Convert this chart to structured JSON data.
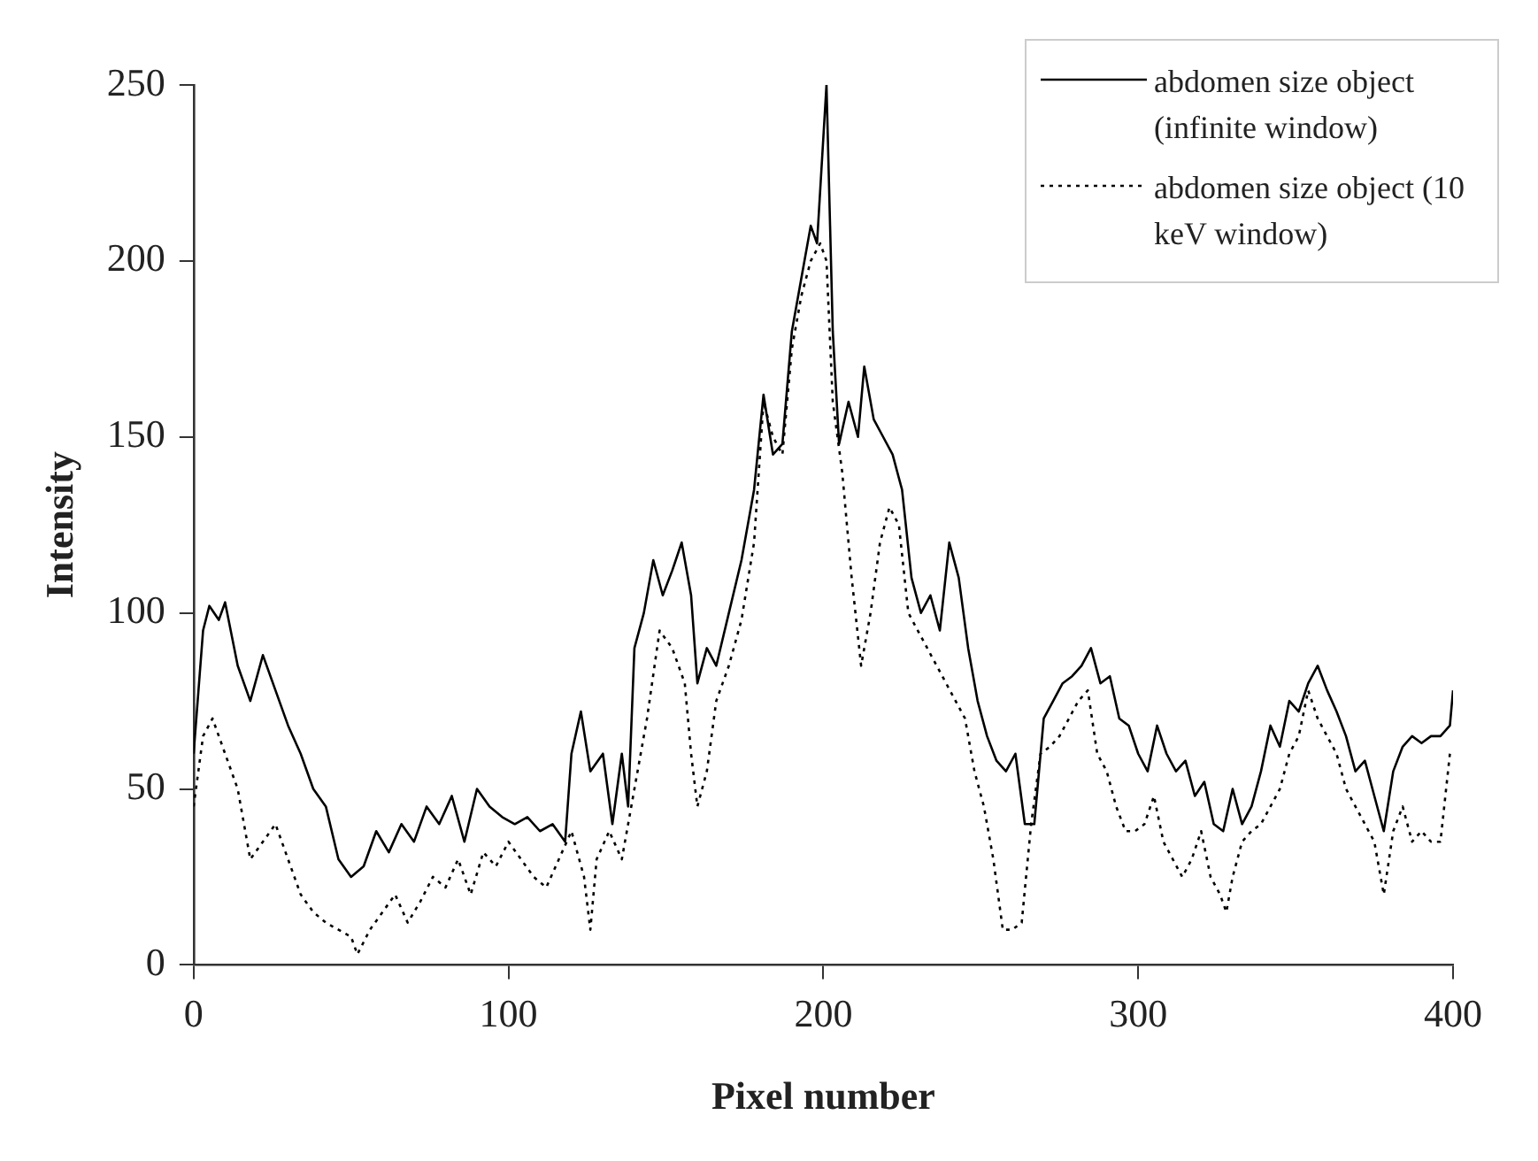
{
  "chart_data": {
    "type": "line",
    "xlabel": "Pixel number",
    "ylabel": "Intensity",
    "xlim": [
      0,
      400
    ],
    "ylim": [
      0,
      250
    ],
    "xticks": [
      0,
      100,
      200,
      300,
      400
    ],
    "yticks": [
      0,
      50,
      100,
      150,
      200,
      250
    ],
    "grid": false,
    "legend": "top right",
    "marker": "none",
    "series": [
      {
        "name": "abdomen size object (infinite window)",
        "color": "#000000",
        "line_style": "solid",
        "x": [
          0,
          3,
          5,
          8,
          10,
          14,
          18,
          22,
          26,
          30,
          34,
          38,
          42,
          46,
          50,
          54,
          58,
          62,
          66,
          70,
          74,
          78,
          82,
          86,
          90,
          94,
          98,
          102,
          106,
          110,
          114,
          118,
          120,
          123,
          126,
          130,
          133,
          136,
          138,
          140,
          143,
          146,
          149,
          152,
          155,
          158,
          160,
          163,
          166,
          170,
          174,
          178,
          181,
          184,
          187,
          190,
          193,
          196,
          198,
          201,
          203,
          205,
          208,
          211,
          213,
          216,
          219,
          222,
          225,
          228,
          231,
          234,
          237,
          240,
          243,
          246,
          249,
          252,
          255,
          258,
          261,
          264,
          267,
          270,
          273,
          276,
          279,
          282,
          285,
          288,
          291,
          294,
          297,
          300,
          303,
          306,
          309,
          312,
          315,
          318,
          321,
          324,
          327,
          330,
          333,
          336,
          339,
          342,
          345,
          348,
          351,
          354,
          357,
          360,
          363,
          366,
          369,
          372,
          375,
          378,
          381,
          384,
          387,
          390,
          393,
          396,
          399,
          400
        ],
        "values": [
          60,
          95,
          102,
          98,
          103,
          85,
          75,
          88,
          78,
          68,
          60,
          50,
          45,
          30,
          25,
          28,
          38,
          32,
          40,
          35,
          45,
          40,
          48,
          35,
          50,
          45,
          42,
          40,
          42,
          38,
          40,
          35,
          60,
          72,
          55,
          60,
          40,
          60,
          45,
          90,
          100,
          115,
          105,
          112,
          120,
          105,
          80,
          90,
          85,
          100,
          115,
          135,
          162,
          145,
          148,
          180,
          195,
          210,
          205,
          250,
          180,
          148,
          160,
          150,
          170,
          155,
          150,
          145,
          135,
          110,
          100,
          105,
          95,
          120,
          110,
          90,
          75,
          65,
          58,
          55,
          60,
          40,
          40,
          70,
          75,
          80,
          82,
          85,
          90,
          80,
          82,
          70,
          68,
          60,
          55,
          68,
          60,
          55,
          58,
          48,
          52,
          40,
          38,
          50,
          40,
          45,
          55,
          68,
          62,
          75,
          72,
          80,
          85,
          78,
          72,
          65,
          55,
          58,
          48,
          38,
          55,
          62,
          65,
          63,
          65,
          65,
          68,
          78
        ]
      },
      {
        "name": "abdomen size object (10 keV window)",
        "color": "#000000",
        "line_style": "dotted",
        "x": [
          0,
          3,
          6,
          10,
          14,
          18,
          22,
          26,
          30,
          34,
          38,
          42,
          46,
          50,
          52,
          56,
          60,
          64,
          68,
          72,
          76,
          80,
          84,
          88,
          92,
          96,
          100,
          104,
          108,
          112,
          116,
          120,
          124,
          126,
          128,
          132,
          136,
          140,
          144,
          148,
          152,
          156,
          158,
          160,
          163,
          166,
          170,
          174,
          178,
          181,
          184,
          187,
          190,
          193,
          196,
          199,
          201,
          203,
          206,
          209,
          212,
          215,
          218,
          221,
          224,
          227,
          230,
          233,
          236,
          239,
          242,
          245,
          248,
          251,
          254,
          257,
          260,
          263,
          266,
          269,
          272,
          275,
          278,
          281,
          284,
          287,
          290,
          293,
          296,
          299,
          302,
          305,
          308,
          311,
          314,
          317,
          320,
          323,
          326,
          328,
          330,
          333,
          336,
          339,
          342,
          345,
          348,
          351,
          354,
          357,
          360,
          363,
          366,
          369,
          372,
          375,
          378,
          381,
          384,
          387,
          390,
          393,
          396,
          399
        ],
        "values": [
          45,
          65,
          70,
          60,
          50,
          30,
          35,
          40,
          30,
          20,
          15,
          12,
          10,
          8,
          3,
          10,
          15,
          20,
          12,
          18,
          25,
          22,
          30,
          20,
          32,
          28,
          35,
          30,
          25,
          22,
          30,
          38,
          25,
          10,
          30,
          38,
          30,
          50,
          70,
          95,
          90,
          80,
          60,
          45,
          55,
          75,
          85,
          98,
          120,
          160,
          150,
          145,
          175,
          190,
          200,
          205,
          200,
          160,
          140,
          110,
          85,
          100,
          120,
          130,
          125,
          100,
          95,
          90,
          85,
          80,
          75,
          70,
          55,
          45,
          30,
          10,
          10,
          12,
          40,
          60,
          62,
          65,
          70,
          75,
          78,
          60,
          55,
          45,
          38,
          38,
          40,
          48,
          35,
          30,
          25,
          30,
          38,
          25,
          20,
          15,
          25,
          35,
          38,
          40,
          45,
          50,
          60,
          65,
          78,
          70,
          65,
          60,
          50,
          45,
          40,
          35,
          20,
          38,
          45,
          35,
          38,
          35,
          35,
          60
        ]
      }
    ]
  }
}
